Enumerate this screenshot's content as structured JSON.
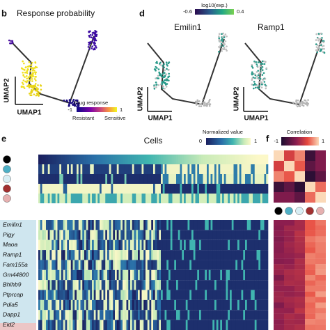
{
  "panel_b": {
    "letter": "b",
    "title": "Response probability",
    "y_axis": "UMAP2",
    "x_axis": "UMAP1",
    "colorbar": {
      "title": "Drug response",
      "min": "-1",
      "max": "1",
      "low": "Resistant",
      "high": "Sensitive"
    }
  },
  "panel_d": {
    "letter": "d",
    "colorbar": {
      "title": "log10(exp.)",
      "min": "-0.6",
      "max": "0.4"
    },
    "plots": [
      {
        "title": "Emilin1",
        "y_axis": "UMAP2",
        "x_axis": "UMAP1"
      },
      {
        "title": "Ramp1",
        "y_axis": "UMAP2",
        "x_axis": "UMAP1"
      }
    ]
  },
  "panel_e": {
    "letter": "e",
    "title": "Cells",
    "colorbar": {
      "title": "Normalized value",
      "min": "0",
      "max": "1"
    },
    "genes": [
      "Emilin1",
      "Pigy",
      "Maoa",
      "Ramp1",
      "Fam155a",
      "Gm44800",
      "Bhlhb9",
      "Ptprcap",
      "Pdia5",
      "Dapp1",
      "Eid2"
    ]
  },
  "panel_f": {
    "letter": "f",
    "colorbar": {
      "title": "Correlation",
      "min": "-1",
      "max": "1"
    }
  }
}
